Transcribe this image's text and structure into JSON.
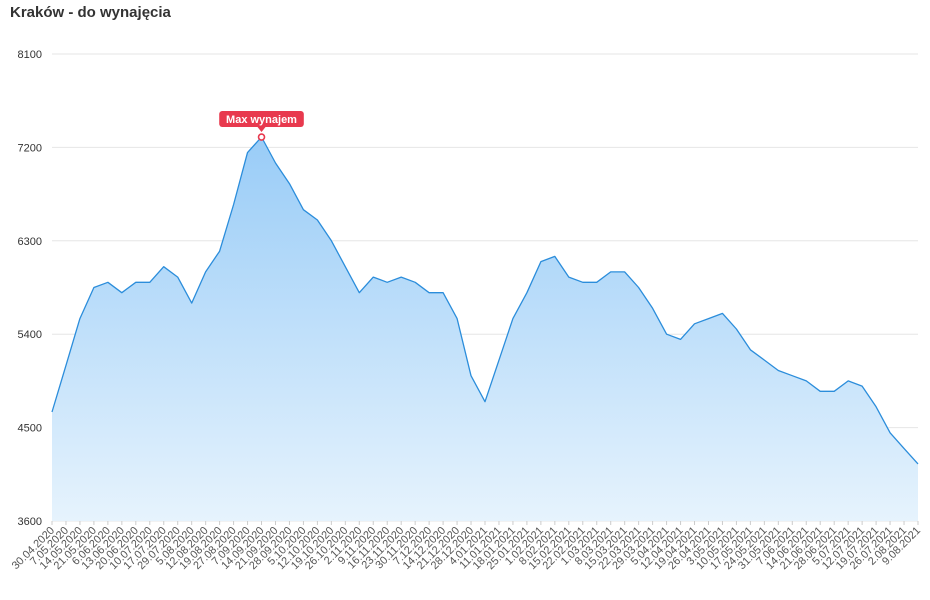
{
  "chart_data": {
    "type": "area",
    "title": "Kraków - do wynajęcia",
    "xlabel": "",
    "ylabel": "",
    "ylim": [
      3600,
      8100
    ],
    "yticks": [
      3600,
      4500,
      5400,
      6300,
      7200,
      8100
    ],
    "grid": true,
    "colors": {
      "line": "#2b8ddb",
      "fill_top": "#99ccf7",
      "fill_bottom": "#e6f3fd",
      "badge": "#e8394e"
    },
    "x": [
      "30.04.2020",
      "7.05.2020",
      "14.05.2020",
      "21.05.2020",
      "6.06.2020",
      "13.06.2020",
      "20.06.2020",
      "10.07.2020",
      "17.07.2020",
      "29.07.2020",
      "5.08.2020",
      "12.08.2020",
      "19.08.2020",
      "27.08.2020",
      "7.09.2020",
      "14.09.2020",
      "21.09.2020",
      "28.09.2020",
      "5.10.2020",
      "12.10.2020",
      "19.10.2020",
      "26.10.2020",
      "2.11.2020",
      "9.11.2020",
      "16.11.2020",
      "23.11.2020",
      "30.11.2020",
      "7.12.2020",
      "14.12.2020",
      "21.12.2020",
      "28.12.2020",
      "4.01.2021",
      "11.01.2021",
      "18.01.2021",
      "25.01.2021",
      "1.02.2021",
      "8.02.2021",
      "15.02.2021",
      "22.02.2021",
      "1.03.2021",
      "8.03.2021",
      "15.03.2021",
      "22.03.2021",
      "29.03.2021",
      "5.04.2021",
      "12.04.2021",
      "19.04.2021",
      "26.04.2021",
      "3.05.2021",
      "10.05.2021",
      "17.05.2021",
      "24.05.2021",
      "31.05.2021",
      "7.06.2021",
      "14.06.2021",
      "21.06.2021",
      "28.06.2021",
      "5.07.2021",
      "12.07.2021",
      "19.07.2021",
      "26.07.2021",
      "2.08.2021",
      "9.08.2021"
    ],
    "series": [
      {
        "values": [
          4650,
          5100,
          5550,
          5850,
          5900,
          5800,
          5900,
          5900,
          6050,
          5950,
          5700,
          6000,
          6200,
          6650,
          7150,
          7300,
          7050,
          6850,
          6600,
          6500,
          6300,
          6050,
          5800,
          5950,
          5900,
          5950,
          5900,
          5800,
          5800,
          5550,
          5000,
          4750,
          5150,
          5550,
          5800,
          6100,
          6150,
          5950,
          5900,
          5900,
          6000,
          6000,
          5850,
          5650,
          5400,
          5350,
          5500,
          5550,
          5600,
          5450,
          5250,
          5150,
          5050,
          5000,
          4950,
          4850,
          4850,
          4950,
          4900,
          4700,
          4450,
          4300,
          4150
        ]
      }
    ],
    "annotations": [
      {
        "label": "Max wynajem",
        "x": "14.09.2020",
        "y": 7300
      }
    ]
  }
}
